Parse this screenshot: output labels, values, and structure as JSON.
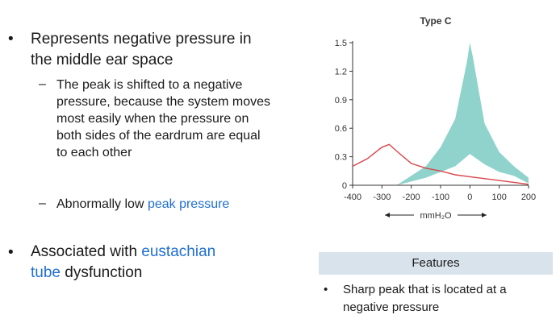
{
  "bullets": [
    {
      "text": "Represents negative pressure in the middle ear space",
      "sub": [
        {
          "text": "The peak is shifted to a negative pressure, because the system moves most easily when the pressure on both sides of the eardrum are equal to each other"
        },
        {
          "prefix": "Abnormally low ",
          "highlight": "peak pressure"
        }
      ]
    },
    {
      "prefix": "Associated with ",
      "highlight_line1": "eustachian",
      "highlight_line2": "tube",
      "suffix": " dysfunction"
    }
  ],
  "chart_data": {
    "type": "area",
    "title": "Type C",
    "xlabel": "mmH₂O",
    "ylabel": "",
    "xlim": [
      -400,
      200
    ],
    "ylim": [
      0,
      1.5
    ],
    "x_ticks": [
      "-400",
      "-300",
      "-200",
      "-100",
      "0",
      "100",
      "200"
    ],
    "y_ticks": [
      "0",
      "0.3",
      "0.6",
      "0.9",
      "1.2",
      "1.5"
    ],
    "normal_range_band": {
      "upper": [
        [
          -250,
          0.0
        ],
        [
          -150,
          0.2
        ],
        [
          -100,
          0.4
        ],
        [
          -50,
          0.7
        ],
        [
          -10,
          1.3
        ],
        [
          0,
          1.5
        ],
        [
          10,
          1.35
        ],
        [
          50,
          0.65
        ],
        [
          100,
          0.35
        ],
        [
          150,
          0.2
        ],
        [
          200,
          0.08
        ]
      ],
      "lower": [
        [
          -250,
          0.0
        ],
        [
          -150,
          0.08
        ],
        [
          -50,
          0.2
        ],
        [
          0,
          0.33
        ],
        [
          50,
          0.22
        ],
        [
          100,
          0.14
        ],
        [
          150,
          0.1
        ],
        [
          200,
          0.02
        ]
      ]
    },
    "series": [
      {
        "x": [
          -400,
          -350,
          -300,
          -275,
          -250,
          -200,
          -150,
          -100,
          -50,
          0,
          100,
          200
        ],
        "y": [
          0.2,
          0.28,
          0.4,
          0.43,
          0.36,
          0.23,
          0.18,
          0.15,
          0.11,
          0.09,
          0.05,
          0.01
        ]
      }
    ],
    "colors": {
      "band": "#8fd3cc",
      "curve": "#d9464b"
    }
  },
  "features": {
    "header": "Features",
    "item": "Sharp peak that is located at a negative pressure"
  }
}
